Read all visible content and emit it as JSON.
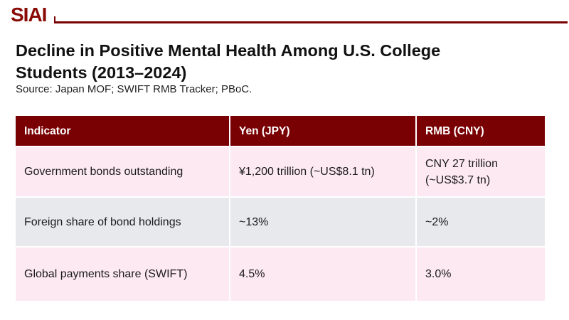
{
  "brand": {
    "logo": "SIAI"
  },
  "header": {
    "title_line1": "Decline in Positive Mental Health Among U.S. College",
    "title_line2": "Students (2013–2024)",
    "source": "Source: Japan MOF; SWIFT RMB Tracker; PBoC."
  },
  "table": {
    "columns": [
      "Indicator",
      "Yen (JPY)",
      "RMB (CNY)"
    ],
    "rows": [
      [
        "Government bonds outstanding",
        "¥1,200 trillion (~US$8.1 tn)",
        "CNY 27 trillion (~US$3.7 tn)"
      ],
      [
        "Foreign share of bond holdings",
        "~13%",
        "~2%"
      ],
      [
        "Global payments share (SWIFT)",
        "4.5%",
        "3.0%"
      ]
    ]
  },
  "colors": {
    "maroon_header": "#7a0103",
    "logo_red": "#8a0b05",
    "pink_row": "#fde9f2",
    "gray_row": "#e7e9ec",
    "header_text": "#ffffff",
    "body_text": "#1a1a1a"
  }
}
